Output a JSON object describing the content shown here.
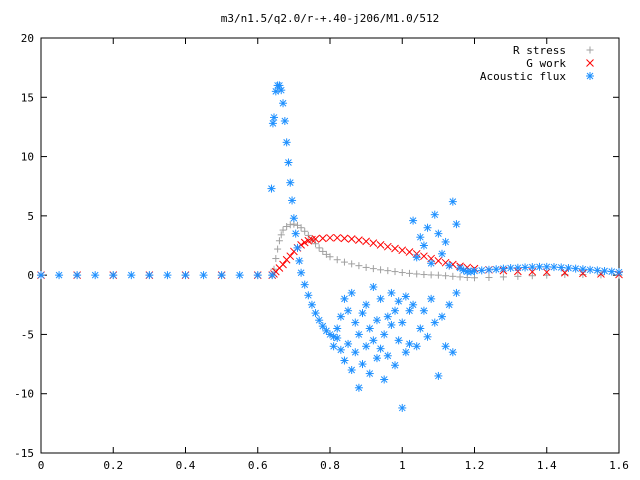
{
  "chart_data": {
    "type": "scatter",
    "title": "m3/n1.5/q2.0/r-+.40-j206/M1.0/512",
    "xlabel": "",
    "ylabel": "",
    "xlim": [
      0,
      1.6
    ],
    "ylim": [
      -15,
      20
    ],
    "x_ticks": [
      "0",
      "0.2",
      "0.4",
      "0.6",
      "0.8",
      "1",
      "1.2",
      "1.4",
      "1.6"
    ],
    "y_ticks": [
      "20",
      "15",
      "10",
      "5",
      "0",
      "-5",
      "-10",
      "-15"
    ],
    "grid": false,
    "legend_position": "top-right",
    "series": [
      {
        "name": "R stress",
        "marker": "+",
        "color": "#a0a0a0",
        "points": [
          [
            0.0,
            0
          ],
          [
            0.1,
            0
          ],
          [
            0.2,
            0
          ],
          [
            0.3,
            0
          ],
          [
            0.4,
            0
          ],
          [
            0.5,
            0
          ],
          [
            0.6,
            0
          ],
          [
            0.64,
            0
          ],
          [
            0.645,
            0.5
          ],
          [
            0.65,
            1.4
          ],
          [
            0.655,
            2.2
          ],
          [
            0.66,
            2.9
          ],
          [
            0.665,
            3.4
          ],
          [
            0.67,
            3.8
          ],
          [
            0.68,
            4.1
          ],
          [
            0.69,
            4.25
          ],
          [
            0.7,
            4.3
          ],
          [
            0.71,
            4.2
          ],
          [
            0.72,
            4.0
          ],
          [
            0.73,
            3.7
          ],
          [
            0.74,
            3.35
          ],
          [
            0.75,
            3.0
          ],
          [
            0.76,
            2.65
          ],
          [
            0.77,
            2.3
          ],
          [
            0.78,
            2.0
          ],
          [
            0.79,
            1.75
          ],
          [
            0.8,
            1.55
          ],
          [
            0.82,
            1.3
          ],
          [
            0.84,
            1.1
          ],
          [
            0.86,
            0.95
          ],
          [
            0.88,
            0.8
          ],
          [
            0.9,
            0.65
          ],
          [
            0.92,
            0.55
          ],
          [
            0.94,
            0.45
          ],
          [
            0.96,
            0.38
          ],
          [
            0.98,
            0.3
          ],
          [
            1.0,
            0.22
          ],
          [
            1.02,
            0.15
          ],
          [
            1.04,
            0.1
          ],
          [
            1.06,
            0.05
          ],
          [
            1.08,
            0.02
          ],
          [
            1.1,
            0
          ],
          [
            1.12,
            -0.05
          ],
          [
            1.14,
            -0.1
          ],
          [
            1.16,
            -0.15
          ],
          [
            1.18,
            -0.2
          ],
          [
            1.2,
            -0.22
          ],
          [
            1.24,
            -0.2
          ],
          [
            1.28,
            -0.15
          ],
          [
            1.32,
            -0.1
          ],
          [
            1.36,
            -0.05
          ],
          [
            1.4,
            0
          ],
          [
            1.45,
            0.05
          ],
          [
            1.5,
            0.05
          ],
          [
            1.55,
            0.02
          ],
          [
            1.6,
            0
          ]
        ]
      },
      {
        "name": "G work",
        "marker": "x",
        "color": "#ff0000",
        "points": [
          [
            0.0,
            0
          ],
          [
            0.1,
            0
          ],
          [
            0.2,
            0
          ],
          [
            0.3,
            0
          ],
          [
            0.4,
            0
          ],
          [
            0.5,
            0
          ],
          [
            0.6,
            0
          ],
          [
            0.64,
            0
          ],
          [
            0.645,
            0.1
          ],
          [
            0.65,
            0.3
          ],
          [
            0.66,
            0.6
          ],
          [
            0.67,
            0.9
          ],
          [
            0.68,
            1.3
          ],
          [
            0.69,
            1.6
          ],
          [
            0.7,
            2.0
          ],
          [
            0.71,
            2.3
          ],
          [
            0.72,
            2.55
          ],
          [
            0.73,
            2.75
          ],
          [
            0.74,
            2.9
          ],
          [
            0.75,
            3.0
          ],
          [
            0.76,
            3.05
          ],
          [
            0.78,
            3.1
          ],
          [
            0.8,
            3.15
          ],
          [
            0.82,
            3.15
          ],
          [
            0.84,
            3.1
          ],
          [
            0.86,
            3.05
          ],
          [
            0.88,
            2.95
          ],
          [
            0.9,
            2.85
          ],
          [
            0.92,
            2.7
          ],
          [
            0.94,
            2.55
          ],
          [
            0.96,
            2.4
          ],
          [
            0.98,
            2.25
          ],
          [
            1.0,
            2.1
          ],
          [
            1.02,
            1.95
          ],
          [
            1.04,
            1.8
          ],
          [
            1.06,
            1.6
          ],
          [
            1.08,
            1.4
          ],
          [
            1.1,
            1.2
          ],
          [
            1.12,
            1.05
          ],
          [
            1.14,
            0.9
          ],
          [
            1.16,
            0.75
          ],
          [
            1.18,
            0.65
          ],
          [
            1.2,
            0.55
          ],
          [
            1.24,
            0.45
          ],
          [
            1.28,
            0.38
          ],
          [
            1.32,
            0.32
          ],
          [
            1.36,
            0.28
          ],
          [
            1.4,
            0.25
          ],
          [
            1.45,
            0.2
          ],
          [
            1.5,
            0.15
          ],
          [
            1.55,
            0.1
          ],
          [
            1.6,
            0.05
          ]
        ]
      },
      {
        "name": "Acoustic flux",
        "marker": "*",
        "color": "#1e90ff",
        "points": [
          [
            0.0,
            0
          ],
          [
            0.05,
            0
          ],
          [
            0.1,
            0
          ],
          [
            0.15,
            0
          ],
          [
            0.2,
            0
          ],
          [
            0.25,
            0
          ],
          [
            0.3,
            0
          ],
          [
            0.35,
            0
          ],
          [
            0.4,
            0
          ],
          [
            0.45,
            0
          ],
          [
            0.5,
            0
          ],
          [
            0.55,
            0
          ],
          [
            0.6,
            0
          ],
          [
            0.64,
            0
          ],
          [
            0.638,
            7.3
          ],
          [
            0.642,
            12.8
          ],
          [
            0.645,
            13.3
          ],
          [
            0.65,
            15.5
          ],
          [
            0.655,
            16.0
          ],
          [
            0.66,
            16.0
          ],
          [
            0.665,
            15.6
          ],
          [
            0.67,
            14.5
          ],
          [
            0.675,
            13.0
          ],
          [
            0.68,
            11.2
          ],
          [
            0.685,
            9.5
          ],
          [
            0.69,
            7.8
          ],
          [
            0.695,
            6.3
          ],
          [
            0.7,
            4.8
          ],
          [
            0.705,
            3.5
          ],
          [
            0.71,
            2.3
          ],
          [
            0.715,
            1.2
          ],
          [
            0.72,
            0.2
          ],
          [
            0.73,
            -0.8
          ],
          [
            0.74,
            -1.7
          ],
          [
            0.75,
            -2.5
          ],
          [
            0.76,
            -3.2
          ],
          [
            0.77,
            -3.8
          ],
          [
            0.78,
            -4.3
          ],
          [
            0.79,
            -4.7
          ],
          [
            0.8,
            -5.0
          ],
          [
            0.81,
            -5.2
          ],
          [
            0.82,
            -5.3
          ],
          [
            0.81,
            -6.0
          ],
          [
            0.82,
            -4.5
          ],
          [
            0.83,
            -6.3
          ],
          [
            0.83,
            -3.5
          ],
          [
            0.84,
            -7.2
          ],
          [
            0.84,
            -2.0
          ],
          [
            0.85,
            -5.8
          ],
          [
            0.85,
            -3.0
          ],
          [
            0.86,
            -8.0
          ],
          [
            0.86,
            -1.5
          ],
          [
            0.87,
            -6.5
          ],
          [
            0.87,
            -4.0
          ],
          [
            0.88,
            -9.5
          ],
          [
            0.88,
            -5.0
          ],
          [
            0.89,
            -3.2
          ],
          [
            0.89,
            -7.5
          ],
          [
            0.9,
            -6.0
          ],
          [
            0.9,
            -2.5
          ],
          [
            0.91,
            -8.3
          ],
          [
            0.91,
            -4.5
          ],
          [
            0.92,
            -5.5
          ],
          [
            0.92,
            -1.0
          ],
          [
            0.93,
            -7.0
          ],
          [
            0.93,
            -3.8
          ],
          [
            0.94,
            -6.2
          ],
          [
            0.94,
            -2.0
          ],
          [
            0.95,
            -8.8
          ],
          [
            0.95,
            -5.0
          ],
          [
            0.96,
            -3.5
          ],
          [
            0.96,
            -6.8
          ],
          [
            0.97,
            -4.2
          ],
          [
            0.97,
            -1.5
          ],
          [
            0.98,
            -7.6
          ],
          [
            0.98,
            -3.0
          ],
          [
            0.99,
            -5.5
          ],
          [
            0.99,
            -2.2
          ],
          [
            1.0,
            -11.2
          ],
          [
            1.0,
            -4.0
          ],
          [
            1.01,
            -6.5
          ],
          [
            1.01,
            -1.8
          ],
          [
            1.02,
            -3.0
          ],
          [
            1.02,
            -5.8
          ],
          [
            1.03,
            4.6
          ],
          [
            1.03,
            -2.5
          ],
          [
            1.04,
            -6.0
          ],
          [
            1.04,
            1.5
          ],
          [
            1.05,
            -4.5
          ],
          [
            1.05,
            3.2
          ],
          [
            1.06,
            -3.0
          ],
          [
            1.06,
            2.5
          ],
          [
            1.07,
            -5.2
          ],
          [
            1.07,
            4.0
          ],
          [
            1.08,
            -2.0
          ],
          [
            1.08,
            1.0
          ],
          [
            1.09,
            5.1
          ],
          [
            1.09,
            -4.0
          ],
          [
            1.1,
            -8.5
          ],
          [
            1.1,
            3.5
          ],
          [
            1.11,
            -3.5
          ],
          [
            1.11,
            1.8
          ],
          [
            1.12,
            -6.0
          ],
          [
            1.12,
            2.8
          ],
          [
            1.13,
            -2.5
          ],
          [
            1.13,
            0.8
          ],
          [
            1.14,
            6.2
          ],
          [
            1.14,
            -6.5
          ],
          [
            1.15,
            4.3
          ],
          [
            1.15,
            -1.5
          ],
          [
            1.16,
            0.6
          ],
          [
            1.17,
            0.4
          ],
          [
            1.18,
            0.3
          ],
          [
            1.19,
            0.3
          ],
          [
            1.2,
            0.35
          ],
          [
            1.22,
            0.4
          ],
          [
            1.24,
            0.45
          ],
          [
            1.26,
            0.5
          ],
          [
            1.28,
            0.55
          ],
          [
            1.3,
            0.6
          ],
          [
            1.32,
            0.62
          ],
          [
            1.34,
            0.65
          ],
          [
            1.36,
            0.68
          ],
          [
            1.38,
            0.7
          ],
          [
            1.4,
            0.7
          ],
          [
            1.42,
            0.68
          ],
          [
            1.44,
            0.65
          ],
          [
            1.46,
            0.6
          ],
          [
            1.48,
            0.55
          ],
          [
            1.5,
            0.5
          ],
          [
            1.52,
            0.45
          ],
          [
            1.54,
            0.4
          ],
          [
            1.56,
            0.35
          ],
          [
            1.58,
            0.3
          ],
          [
            1.6,
            0.25
          ]
        ]
      }
    ]
  }
}
